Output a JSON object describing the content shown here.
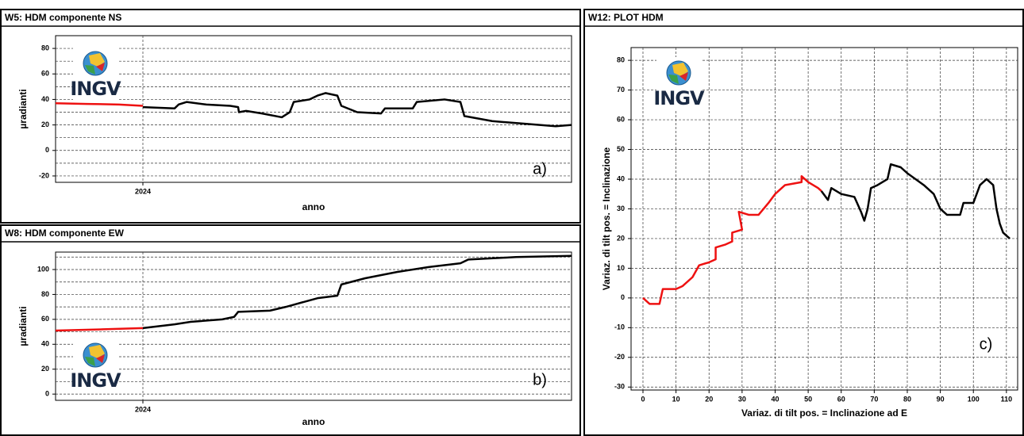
{
  "chart_data": [
    {
      "type": "line",
      "title": "W5: HDM componente NS",
      "xlabel": "anno",
      "ylabel": "µradianti",
      "annotation": "a)",
      "logo_text": "INGV",
      "xlim": [
        2023.89,
        2024.54
      ],
      "ylim": [
        -25,
        90
      ],
      "xticks": [
        2024
      ],
      "yticks": [
        -20,
        0,
        20,
        40,
        60,
        80
      ],
      "ygrid_minor": [
        -10,
        10,
        30,
        50,
        70
      ],
      "grid": true,
      "series": [
        {
          "color": "#ee1111",
          "x": [
            2023.89,
            2023.93,
            2023.97,
            2024.0
          ],
          "values": [
            37,
            36.5,
            36,
            35
          ]
        },
        {
          "color": "#000000",
          "x": [
            2024.0,
            2024.04,
            2024.045,
            2024.055,
            2024.08,
            2024.11,
            2024.12,
            2024.121,
            2024.13,
            2024.15,
            2024.175,
            2024.185,
            2024.19,
            2024.21,
            2024.22,
            2024.23,
            2024.245,
            2024.25,
            2024.27,
            2024.3,
            2024.305,
            2024.34,
            2024.345,
            2024.38,
            2024.4,
            2024.405,
            2024.44,
            2024.48,
            2024.52,
            2024.54
          ],
          "values": [
            34,
            33,
            36,
            38,
            36,
            35,
            34,
            30,
            31,
            29,
            26,
            30,
            38,
            40,
            43,
            45,
            43,
            35,
            30,
            29,
            33,
            33,
            38,
            40,
            38,
            27,
            23,
            21,
            19,
            20
          ]
        }
      ]
    },
    {
      "type": "line",
      "title": "W8: HDM componente EW",
      "xlabel": "anno",
      "ylabel": "µradianti",
      "annotation": "b)",
      "logo_text": "INGV",
      "xlim": [
        2023.89,
        2024.54
      ],
      "ylim": [
        -5,
        114
      ],
      "xticks": [
        2024
      ],
      "yticks": [
        0,
        20,
        40,
        60,
        80,
        100
      ],
      "ygrid_minor": [
        10,
        30,
        50,
        70,
        90,
        110
      ],
      "grid": true,
      "series": [
        {
          "color": "#ee1111",
          "x": [
            2023.89,
            2023.95,
            2024.0
          ],
          "values": [
            51,
            52,
            53
          ]
        },
        {
          "color": "#000000",
          "x": [
            2024.0,
            2024.04,
            2024.06,
            2024.1,
            2024.115,
            2024.12,
            2024.16,
            2024.18,
            2024.22,
            2024.245,
            2024.25,
            2024.28,
            2024.32,
            2024.36,
            2024.4,
            2024.41,
            2024.47,
            2024.54
          ],
          "values": [
            53,
            56,
            58,
            60,
            62,
            66,
            67,
            70,
            77,
            79,
            88,
            93,
            98,
            102,
            105,
            108,
            110,
            111
          ]
        }
      ]
    },
    {
      "type": "line",
      "title": "W12: PLOT HDM",
      "xlabel": "Variaz. di tilt pos. = Inclinazione ad E",
      "ylabel": "Variaz. di tilt pos. = Inclinazione",
      "annotation": "c)",
      "logo_text": "INGV",
      "xlim": [
        -3.6,
        113.4
      ],
      "ylim": [
        -31,
        84.3
      ],
      "xticks": [
        0,
        10,
        20,
        30,
        40,
        50,
        60,
        70,
        80,
        90,
        100,
        110
      ],
      "yticks": [
        -30,
        -20,
        -10,
        0,
        10,
        20,
        30,
        40,
        50,
        60,
        70,
        80
      ],
      "ygrid_minor": [],
      "grid": true,
      "series": [
        {
          "color": "#ee1111",
          "x": [
            0,
            2,
            5,
            6,
            8,
            10,
            12,
            15,
            17,
            20,
            22,
            22,
            25,
            27,
            27,
            30,
            29,
            32,
            35,
            38,
            40,
            43,
            48,
            48,
            50,
            53,
            54
          ],
          "values": [
            0,
            -2,
            -2,
            3,
            3,
            3,
            4,
            7,
            11,
            12,
            13,
            17,
            18,
            19,
            22,
            23,
            29,
            28,
            28,
            32,
            35,
            38,
            39,
            41,
            39,
            37,
            36
          ]
        },
        {
          "color": "#000000",
          "x": [
            54,
            56,
            57,
            60,
            64,
            66,
            67,
            68,
            69,
            71,
            74,
            75,
            78,
            80,
            85,
            88,
            90,
            92,
            96,
            97,
            100,
            102,
            104,
            106,
            107,
            108,
            109,
            111
          ],
          "values": [
            36,
            33,
            37,
            35,
            34,
            29,
            26,
            30,
            37,
            38,
            40,
            45,
            44,
            42,
            38,
            35,
            30,
            28,
            28,
            32,
            32,
            38,
            40,
            38,
            30,
            25,
            22,
            20
          ]
        }
      ]
    }
  ]
}
